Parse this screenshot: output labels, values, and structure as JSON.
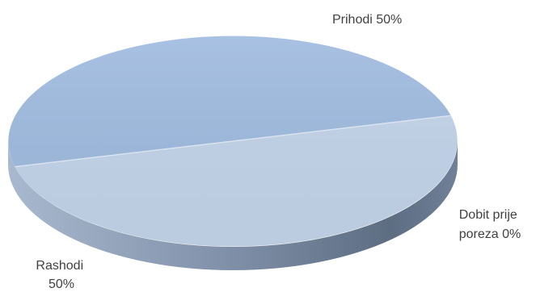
{
  "chart_data": {
    "type": "pie",
    "style": "3d",
    "slices": [
      {
        "name": "Prihodi",
        "value": 50,
        "label": "Prihodi 50%",
        "color": "#9fbbe0"
      },
      {
        "name": "Dobit prije poreza",
        "value": 0,
        "label_lines": [
          "Dobit prije",
          "poreza 0%"
        ],
        "color": "#7f97ba"
      },
      {
        "name": "Rashodi",
        "value": 50,
        "label_lines": [
          "Rashodi",
          "50%"
        ],
        "color": "#c3d4ea"
      }
    ],
    "legend": "none"
  }
}
